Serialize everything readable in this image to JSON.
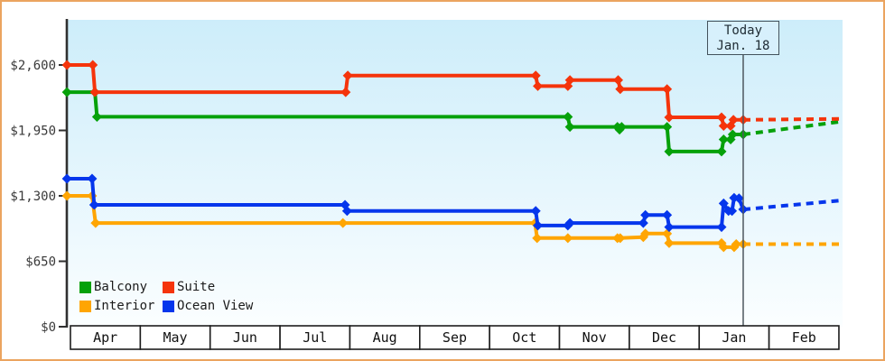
{
  "chart_data": {
    "type": "line",
    "title": "",
    "grid": false,
    "legend_position": "bottom-left",
    "x_axis": {
      "tick_labels": [
        "Apr",
        "May",
        "Jun",
        "Jul",
        "Aug",
        "Sep",
        "Oct",
        "Nov",
        "Dec",
        "Jan",
        "Feb"
      ]
    },
    "y_axis": {
      "tick_labels": [
        "$0",
        "$650",
        "$1,300",
        "$1,950",
        "$2,600"
      ],
      "tick_values": [
        0,
        650,
        1300,
        1950,
        2600
      ],
      "range": [
        0,
        2600
      ]
    },
    "today": {
      "line1": "Today",
      "line2": "Jan. 18",
      "month_pos": 9.63
    },
    "series": [
      {
        "name": "Balcony",
        "color": "#06a10a",
        "points": [
          [
            -0.05,
            2330
          ],
          [
            0.35,
            2330
          ],
          [
            0.38,
            2085
          ],
          [
            7.12,
            2085
          ],
          [
            7.15,
            1985
          ],
          [
            7.83,
            1985
          ],
          [
            7.86,
            1958
          ],
          [
            7.89,
            1985
          ],
          [
            8.54,
            1985
          ],
          [
            8.57,
            1740
          ],
          [
            9.32,
            1740
          ],
          [
            9.35,
            1860
          ],
          [
            9.45,
            1860
          ],
          [
            9.48,
            1910
          ],
          [
            9.63,
            1910
          ]
        ],
        "forecast": [
          [
            9.63,
            1910
          ],
          [
            11.05,
            2040
          ]
        ]
      },
      {
        "name": "Suite",
        "color": "#f5340b",
        "points": [
          [
            -0.05,
            2600
          ],
          [
            0.32,
            2600
          ],
          [
            0.35,
            2330
          ],
          [
            3.94,
            2330
          ],
          [
            3.97,
            2495
          ],
          [
            6.66,
            2495
          ],
          [
            6.69,
            2390
          ],
          [
            7.12,
            2390
          ],
          [
            7.15,
            2450
          ],
          [
            7.84,
            2450
          ],
          [
            7.87,
            2360
          ],
          [
            8.54,
            2360
          ],
          [
            8.57,
            2080
          ],
          [
            9.32,
            2080
          ],
          [
            9.35,
            1995
          ],
          [
            9.45,
            1995
          ],
          [
            9.49,
            2055
          ],
          [
            9.63,
            2055
          ]
        ],
        "forecast": [
          [
            9.63,
            2055
          ],
          [
            11.05,
            2065
          ]
        ]
      },
      {
        "name": "Interior",
        "color": "#ffa502",
        "points": [
          [
            -0.05,
            1300
          ],
          [
            0.31,
            1300
          ],
          [
            0.36,
            1030
          ],
          [
            3.9,
            1030
          ],
          [
            6.65,
            1030
          ],
          [
            6.68,
            880
          ],
          [
            7.12,
            880
          ],
          [
            7.83,
            880
          ],
          [
            7.87,
            880
          ],
          [
            8.2,
            890
          ],
          [
            8.23,
            925
          ],
          [
            8.54,
            925
          ],
          [
            8.57,
            830
          ],
          [
            9.32,
            830
          ],
          [
            9.35,
            790
          ],
          [
            9.5,
            790
          ],
          [
            9.53,
            820
          ],
          [
            9.63,
            820
          ]
        ],
        "forecast": [
          [
            9.63,
            820
          ],
          [
            11.05,
            820
          ]
        ]
      },
      {
        "name": "Ocean View",
        "color": "#0536ec",
        "points": [
          [
            -0.05,
            1470
          ],
          [
            0.31,
            1470
          ],
          [
            0.34,
            1210
          ],
          [
            3.93,
            1210
          ],
          [
            3.96,
            1150
          ],
          [
            6.66,
            1150
          ],
          [
            6.69,
            1005
          ],
          [
            7.12,
            1005
          ],
          [
            7.15,
            1030
          ],
          [
            8.2,
            1030
          ],
          [
            8.23,
            1110
          ],
          [
            8.54,
            1110
          ],
          [
            8.57,
            990
          ],
          [
            9.32,
            990
          ],
          [
            9.35,
            1225
          ],
          [
            9.42,
            1150
          ],
          [
            9.47,
            1150
          ],
          [
            9.5,
            1280
          ],
          [
            9.57,
            1275
          ],
          [
            9.63,
            1165
          ]
        ],
        "forecast": [
          [
            9.63,
            1165
          ],
          [
            11.05,
            1255
          ]
        ]
      }
    ]
  },
  "legend": {
    "items": [
      "Balcony",
      "Suite",
      "Interior",
      "Ocean View"
    ]
  }
}
